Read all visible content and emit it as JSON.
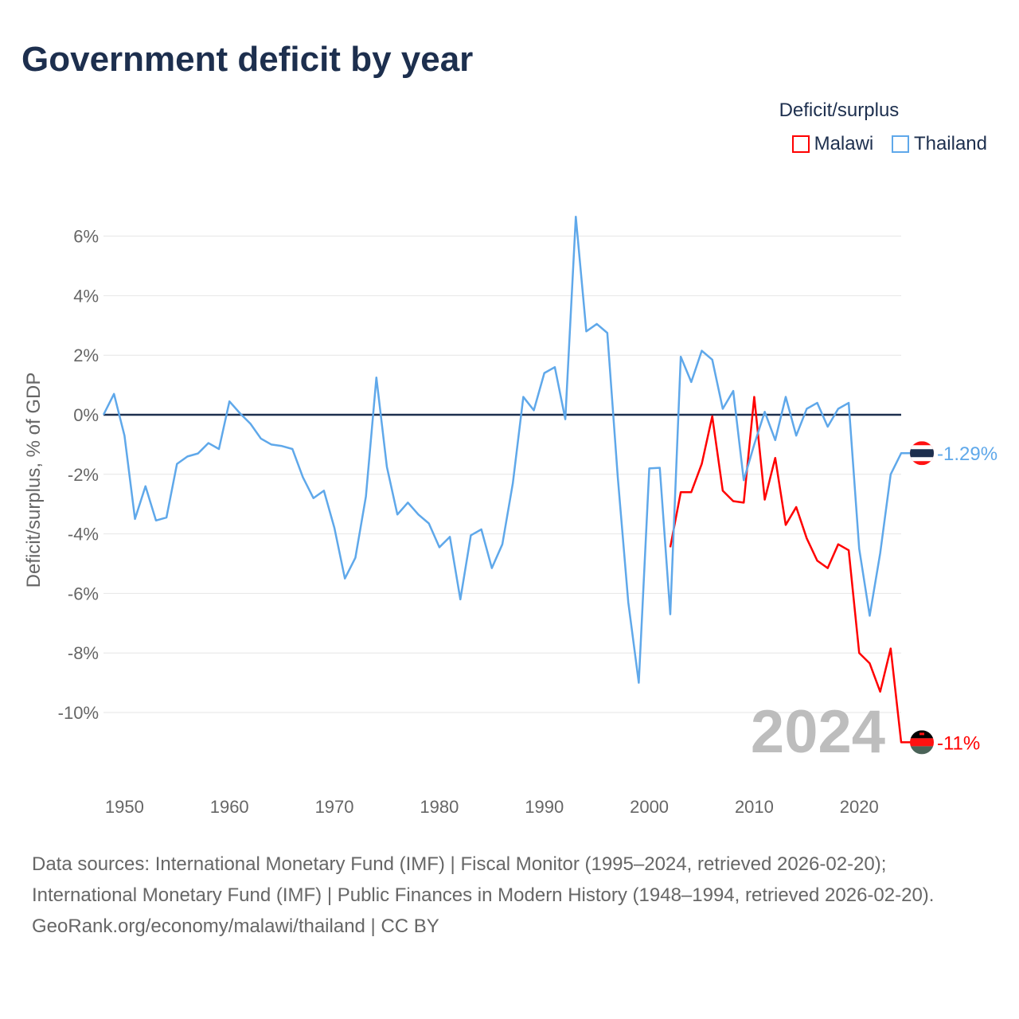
{
  "chart_data": {
    "type": "line",
    "title": "Government deficit by year",
    "xlabel": "",
    "ylabel": "Deficit/surplus, % of GDP",
    "xlim": [
      1948,
      2024
    ],
    "ylim": [
      -12,
      7
    ],
    "x_ticks": [
      "1950",
      "1960",
      "1970",
      "1980",
      "1990",
      "2000",
      "2010",
      "2020"
    ],
    "y_ticks": [
      "6%",
      "4%",
      "2%",
      "0%",
      "-2%",
      "-4%",
      "-6%",
      "-8%",
      "-10%"
    ],
    "y_tick_values": [
      6,
      4,
      2,
      0,
      -2,
      -4,
      -6,
      -8,
      -10
    ],
    "x_tick_values": [
      1950,
      1960,
      1970,
      1980,
      1990,
      2000,
      2010,
      2020
    ],
    "legend_title": "Deficit/surplus",
    "legend_position": "top-right",
    "year_watermark": "2024",
    "series": [
      {
        "name": "Malawi",
        "color": "#ff0000",
        "end_label": "-11%",
        "x": [
          2002,
          2003,
          2004,
          2005,
          2006,
          2007,
          2008,
          2009,
          2010,
          2011,
          2012,
          2013,
          2014,
          2015,
          2016,
          2017,
          2018,
          2019,
          2020,
          2021,
          2022,
          2023,
          2024
        ],
        "values": [
          -4.45,
          -2.6,
          -2.6,
          -1.65,
          -0.05,
          -2.55,
          -2.9,
          -2.95,
          0.6,
          -2.85,
          -1.45,
          -3.7,
          -3.1,
          -4.15,
          -4.9,
          -5.15,
          -4.35,
          -4.55,
          -8.0,
          -8.35,
          -9.3,
          -7.85,
          -11.0
        ]
      },
      {
        "name": "Thailand",
        "color": "#5fa8ea",
        "end_label": "-1.29%",
        "x": [
          1948,
          1949,
          1950,
          1951,
          1952,
          1953,
          1954,
          1955,
          1956,
          1957,
          1958,
          1959,
          1960,
          1961,
          1962,
          1963,
          1964,
          1965,
          1966,
          1967,
          1968,
          1969,
          1970,
          1971,
          1972,
          1973,
          1974,
          1975,
          1976,
          1977,
          1978,
          1979,
          1980,
          1981,
          1982,
          1983,
          1984,
          1985,
          1986,
          1987,
          1988,
          1989,
          1990,
          1991,
          1992,
          1993,
          1994,
          1995,
          1996,
          1997,
          1998,
          1999,
          2000,
          2001,
          2002,
          2003,
          2004,
          2005,
          2006,
          2007,
          2008,
          2009,
          2010,
          2011,
          2012,
          2013,
          2014,
          2015,
          2016,
          2017,
          2018,
          2019,
          2020,
          2021,
          2022,
          2023,
          2024
        ],
        "values": [
          0,
          0.7,
          -0.7,
          -3.5,
          -2.4,
          -3.55,
          -3.45,
          -1.65,
          -1.4,
          -1.3,
          -0.95,
          -1.15,
          0.45,
          0.05,
          -0.3,
          -0.8,
          -1.0,
          -1.05,
          -1.15,
          -2.1,
          -2.8,
          -2.55,
          -3.8,
          -5.5,
          -4.8,
          -2.75,
          1.25,
          -1.75,
          -3.35,
          -2.95,
          -3.35,
          -3.65,
          -4.45,
          -4.1,
          -6.2,
          -4.05,
          -3.85,
          -5.15,
          -4.35,
          -2.3,
          0.6,
          0.15,
          1.4,
          1.6,
          -0.15,
          6.65,
          2.8,
          3.05,
          2.75,
          -2.1,
          -6.3,
          -9.0,
          -1.8,
          -1.78,
          -6.7,
          1.95,
          1.1,
          2.15,
          1.85,
          0.2,
          0.8,
          -2.2,
          -1.0,
          0.1,
          -0.85,
          0.6,
          -0.7,
          0.2,
          0.4,
          -0.4,
          0.2,
          0.4,
          -4.5,
          -6.75,
          -4.65,
          -2.0,
          -1.29
        ]
      }
    ]
  },
  "sources": {
    "line1": "Data sources: International Monetary Fund (IMF) | Fiscal Monitor (1995–2024, retrieved 2026-02-20); International Monetary Fund (IMF) | Public Finances in Modern History (1948–1994, retrieved 2026-02-20).",
    "line2": "GeoRank.org/economy/malawi/thailand | CC BY"
  }
}
